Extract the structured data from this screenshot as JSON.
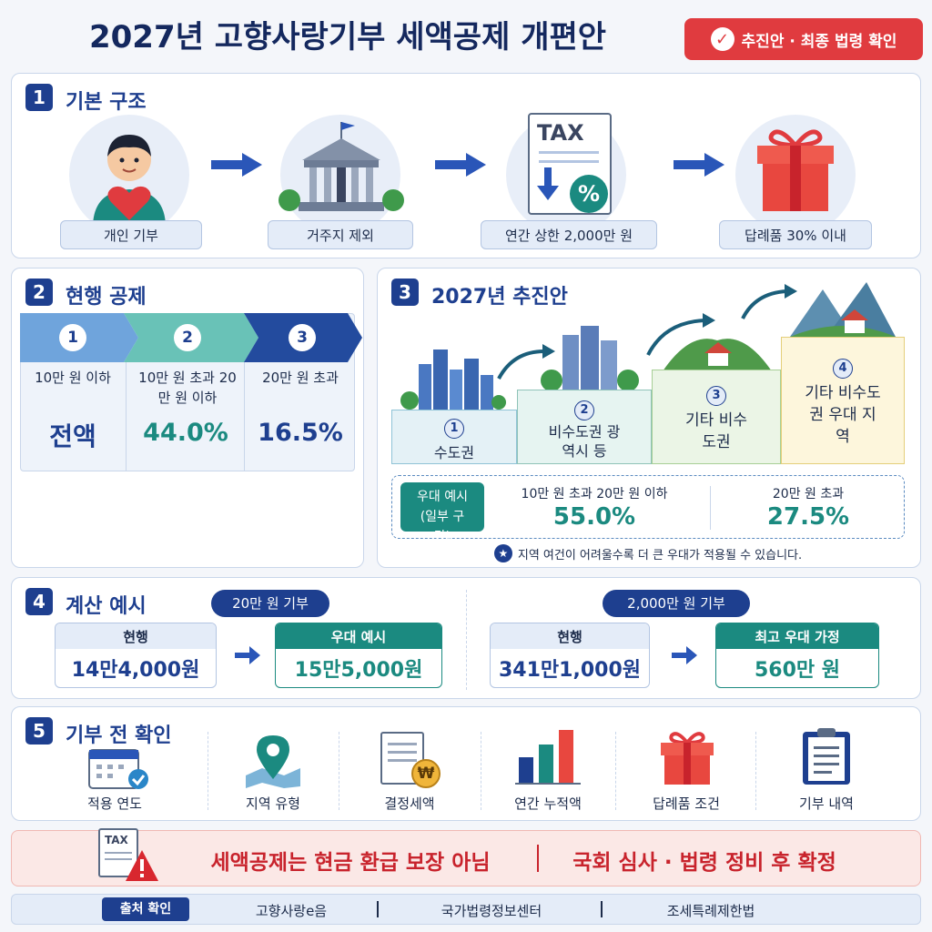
{
  "header": {
    "title": "2027년 고향사랑기부 세액공제 개편안",
    "badge": "추진안 · 최종 법령 확인"
  },
  "section1": {
    "num": "1",
    "title": "기본 구조",
    "steps": [
      {
        "label": "개인 기부",
        "icon": "person-heart-icon"
      },
      {
        "label": "거주지 제외",
        "icon": "government-building-icon"
      },
      {
        "label": "연간 상한 2,000만 원",
        "icon": "tax-document-icon",
        "icon_text": "TAX",
        "icon_symbol": "%"
      },
      {
        "label": "답례품 30% 이내",
        "icon": "gift-box-icon"
      }
    ]
  },
  "section2": {
    "num": "2",
    "title": "현행 공제",
    "tiers": [
      {
        "num": "1",
        "range": "10만 원 이하",
        "rate": "전액"
      },
      {
        "num": "2",
        "range": "10만 원 초과 20만 원 이하",
        "rate": "44.0%"
      },
      {
        "num": "3",
        "range": "20만 원 초과",
        "rate": "16.5%"
      }
    ]
  },
  "section3": {
    "num": "3",
    "title": "2027년 추진안",
    "regions": [
      {
        "num": "1",
        "label": "수도권"
      },
      {
        "num": "2",
        "label": "비수도권 광역시 등"
      },
      {
        "num": "3",
        "label": "기타 비수도권"
      },
      {
        "num": "4",
        "label": "기타 비수도권 우대 지역"
      }
    ],
    "example_tag": "우대 예시 (일부 구간)",
    "example_cols": [
      {
        "range": "10만 원 초과 20만 원 이하",
        "rate": "55.0%"
      },
      {
        "range": "20만 원 초과",
        "rate": "27.5%"
      }
    ],
    "note": "지역 여건이 어려울수록 더 큰 우대가 적용될 수 있습니다."
  },
  "section4": {
    "num": "4",
    "title": "계산 예시",
    "examples": [
      {
        "tag": "20만 원 기부",
        "current_head": "현행",
        "current_value": "14만4,000원",
        "new_head": "우대 예시",
        "new_value": "15만5,000원"
      },
      {
        "tag": "2,000만 원 기부",
        "current_head": "현행",
        "current_value": "341만1,000원",
        "new_head": "최고 우대 가정",
        "new_value": "560만 원"
      }
    ]
  },
  "section5": {
    "num": "5",
    "title": "기부 전 확인",
    "items": [
      {
        "label": "적용 연도",
        "icon": "calendar-check-icon"
      },
      {
        "label": "지역 유형",
        "icon": "map-pin-icon"
      },
      {
        "label": "결정세액",
        "icon": "document-won-icon",
        "icon_symbol": "₩"
      },
      {
        "label": "연간 누적액",
        "icon": "bar-chart-icon"
      },
      {
        "label": "답례품 조건",
        "icon": "gift-box-icon"
      },
      {
        "label": "기부 내역",
        "icon": "clipboard-icon"
      }
    ]
  },
  "warning": {
    "icon": "tax-warning-icon",
    "icon_text": "TAX",
    "text1": "세액공제는 현금 환급 보장 아님",
    "text2": "국회 심사 · 법령 정비 후 확정"
  },
  "footer": {
    "tag": "출처 확인",
    "sources": [
      "고향사랑e음",
      "국가법령정보센터",
      "조세특례제한법"
    ]
  },
  "colors": {
    "navy": "#1e3f8f",
    "teal": "#1b8a80",
    "red": "#c8232c",
    "light_blue": "#e4ecf8"
  }
}
